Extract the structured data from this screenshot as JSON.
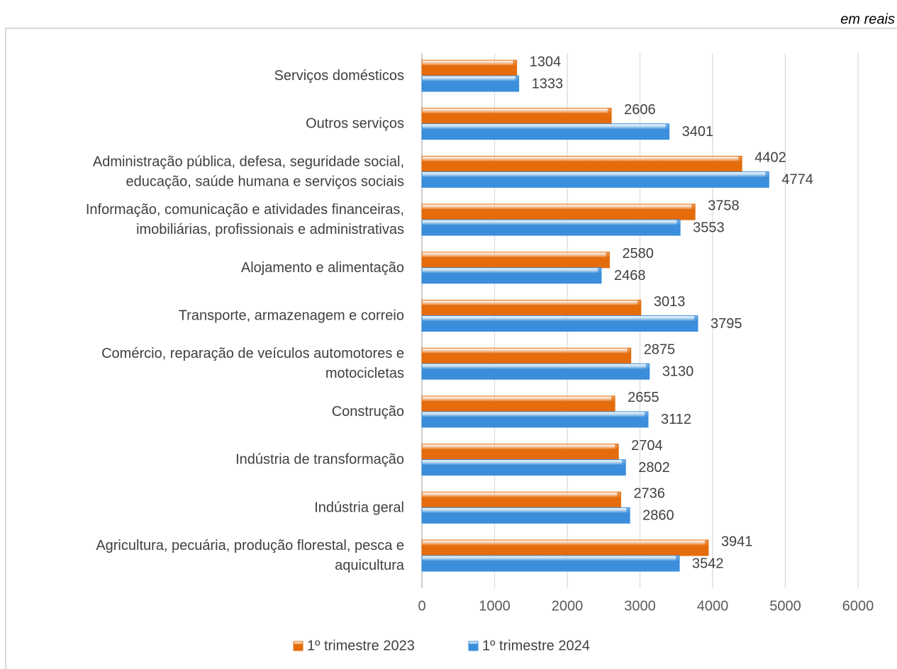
{
  "chart_data": {
    "type": "bar",
    "orientation": "horizontal",
    "subtitle": "em reais",
    "categories": [
      [
        "Serviços domésticos"
      ],
      [
        "Outros serviços"
      ],
      [
        "Administração pública, defesa, seguridade social,",
        "educação, saúde humana e serviços sociais"
      ],
      [
        "Informação, comunicação e atividades financeiras,",
        "imobiliárias, profissionais e administrativas"
      ],
      [
        "Alojamento e alimentação"
      ],
      [
        "Transporte, armazenagem e correio"
      ],
      [
        "Comércio, reparação de veículos automotores e",
        "motocicletas"
      ],
      [
        "Construção"
      ],
      [
        "Indústria de transformação"
      ],
      [
        "Indústria geral"
      ],
      [
        "Agricultura, pecuária, produção florestal, pesca e",
        "aquicultura"
      ]
    ],
    "series": [
      {
        "name": "1º trimestre 2023",
        "color": "#e46c0a",
        "values": [
          1304,
          2606,
          4402,
          3758,
          2580,
          3013,
          2875,
          2655,
          2704,
          2736,
          3941
        ]
      },
      {
        "name": "1º trimestre 2024",
        "color": "#3b8edb",
        "values": [
          1333,
          3401,
          4774,
          3553,
          2468,
          3795,
          3130,
          3112,
          2802,
          2860,
          3542
        ]
      }
    ],
    "xlim": [
      0,
      6000
    ],
    "xticks": [
      0,
      1000,
      2000,
      3000,
      4000,
      5000,
      6000
    ],
    "grid": true,
    "legend": "bottom"
  }
}
